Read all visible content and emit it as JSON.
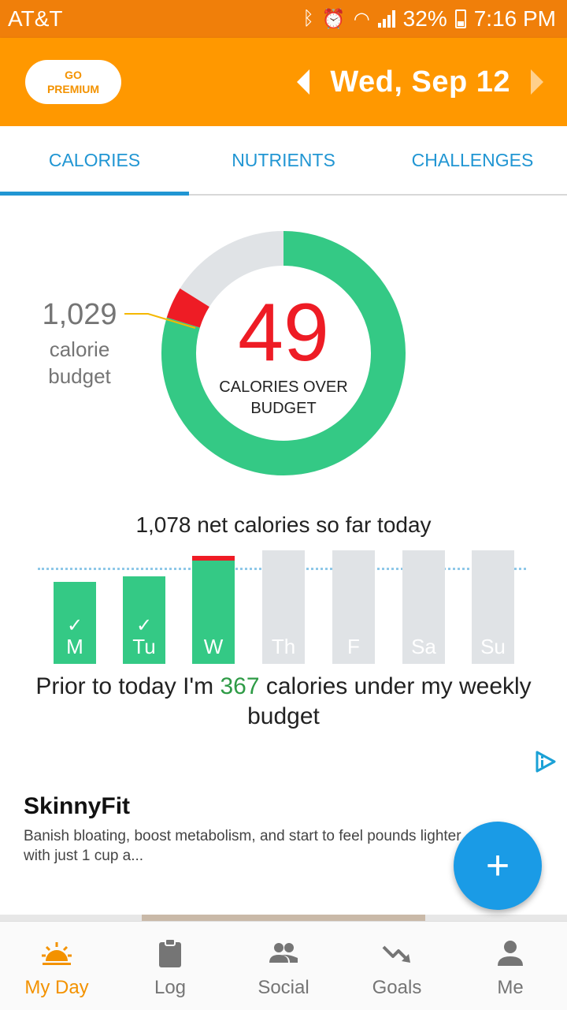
{
  "status_bar": {
    "carrier": "AT&T",
    "battery_percent": "32%",
    "time": "7:16 PM"
  },
  "header": {
    "premium_line1": "GO",
    "premium_line2": "PREMIUM",
    "date": "Wed, Sep 12",
    "accent_color": "#ff9800"
  },
  "tabs": [
    {
      "label": "CALORIES",
      "active": true
    },
    {
      "label": "NUTRIENTS",
      "active": false
    },
    {
      "label": "CHALLENGES",
      "active": false
    }
  ],
  "summary": {
    "big_number": "49",
    "big_label_line1": "CALORIES OVER",
    "big_label_line2": "BUDGET",
    "budget_value": "1,029",
    "budget_label_line1": "calorie",
    "budget_label_line2": "budget",
    "net_calories_text": "1,078 net calories so far today"
  },
  "week": {
    "days": [
      {
        "label": "M",
        "checked": true,
        "status": "done",
        "level": 0.72
      },
      {
        "label": "Tu",
        "checked": true,
        "status": "done",
        "level": 0.77
      },
      {
        "label": "W",
        "checked": false,
        "status": "over",
        "level": 0.95
      },
      {
        "label": "Th",
        "checked": false,
        "status": "future",
        "level": 1.0
      },
      {
        "label": "F",
        "checked": false,
        "status": "future",
        "level": 1.0
      },
      {
        "label": "Sa",
        "checked": false,
        "status": "future",
        "level": 1.0
      },
      {
        "label": "Su",
        "checked": false,
        "status": "future",
        "level": 1.0
      }
    ],
    "prior_prefix": "Prior to today I'm",
    "prior_value": "367",
    "prior_suffix": "calories under my weekly budget"
  },
  "ad": {
    "title": "SkinnyFit",
    "body": "Banish bloating, boost metabolism, and start to feel pounds lighter with just 1 cup a...",
    "badge_icon": "adchoices-icon"
  },
  "fab": {
    "icon": "plus-icon"
  },
  "bottom_nav": [
    {
      "label": "My Day",
      "icon": "sunrise-icon",
      "active": true
    },
    {
      "label": "Log",
      "icon": "clipboard-icon",
      "active": false
    },
    {
      "label": "Social",
      "icon": "people-icon",
      "active": false
    },
    {
      "label": "Goals",
      "icon": "trend-down-icon",
      "active": false
    },
    {
      "label": "Me",
      "icon": "person-icon",
      "active": false
    }
  ]
}
